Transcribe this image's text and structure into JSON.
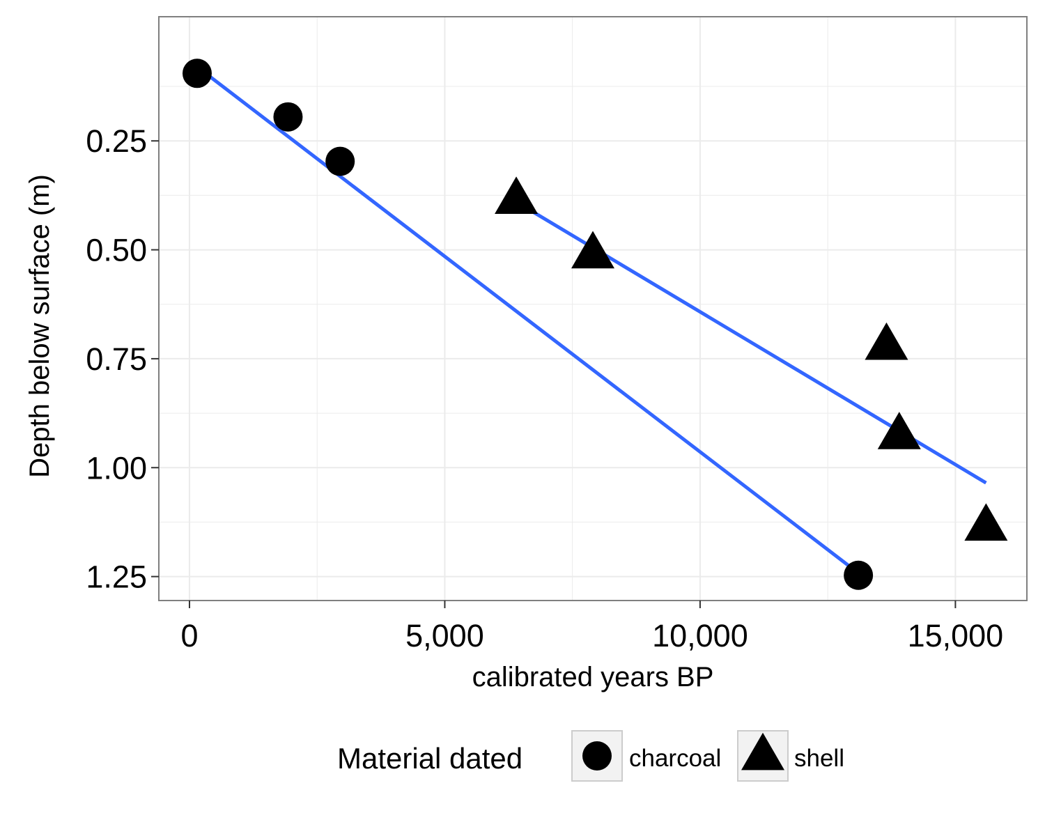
{
  "chart_data": {
    "type": "scatter",
    "xlabel": "calibrated years BP",
    "ylabel": "Depth below surface (m)",
    "xlim": [
      -600,
      16400
    ],
    "ylim": [
      1.305,
      -0.035
    ],
    "y_reversed": true,
    "grid": true,
    "x_ticks": [
      {
        "value": 0,
        "label": "0"
      },
      {
        "value": 5000,
        "label": "5,000"
      },
      {
        "value": 10000,
        "label": "10,000"
      },
      {
        "value": 15000,
        "label": "15,000"
      }
    ],
    "y_ticks": [
      {
        "value": 0.25,
        "label": "0.25"
      },
      {
        "value": 0.5,
        "label": "0.50"
      },
      {
        "value": 0.75,
        "label": "0.75"
      },
      {
        "value": 1.0,
        "label": "1.00"
      },
      {
        "value": 1.25,
        "label": "1.25"
      }
    ],
    "colors": {
      "points": "#000000",
      "fit_line": "#3366ff",
      "grid": "#ebebeb",
      "panel_border": "#7f7f7f"
    },
    "series": [
      {
        "name": "charcoal",
        "shape": "circle",
        "points": [
          {
            "x": 150,
            "y": 0.095
          },
          {
            "x": 1930,
            "y": 0.195
          },
          {
            "x": 2950,
            "y": 0.297
          },
          {
            "x": 13100,
            "y": 1.247
          }
        ],
        "fit": [
          {
            "x": 150,
            "y": 0.08
          },
          {
            "x": 13100,
            "y": 1.242
          }
        ]
      },
      {
        "name": "shell",
        "shape": "triangle",
        "points": [
          {
            "x": 6400,
            "y": 0.385
          },
          {
            "x": 7900,
            "y": 0.51
          },
          {
            "x": 13650,
            "y": 0.72
          },
          {
            "x": 13900,
            "y": 0.925
          },
          {
            "x": 15600,
            "y": 1.135
          }
        ],
        "fit": [
          {
            "x": 6400,
            "y": 0.39
          },
          {
            "x": 15600,
            "y": 1.035
          }
        ]
      }
    ],
    "legend": {
      "title": "Material dated",
      "position": "bottom",
      "entries": [
        {
          "label": "charcoal",
          "shape": "circle"
        },
        {
          "label": "shell",
          "shape": "triangle"
        }
      ]
    }
  }
}
